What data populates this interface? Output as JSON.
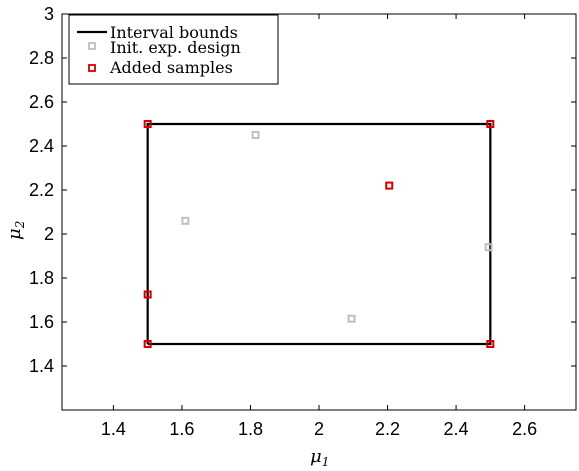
{
  "chart_data": {
    "type": "scatter",
    "xlabel": {
      "symbol": "μ",
      "subscript": "1"
    },
    "ylabel": {
      "symbol": "μ",
      "subscript": "2"
    },
    "xlim": [
      1.25,
      2.75
    ],
    "ylim": [
      1.2,
      3.0
    ],
    "xticks": [
      "1.4",
      "1.6",
      "1.8",
      "2",
      "2.2",
      "2.4",
      "2.6"
    ],
    "xtick_values": [
      1.4,
      1.6,
      1.8,
      2.0,
      2.2,
      2.4,
      2.6
    ],
    "yticks": [
      "1.4",
      "1.6",
      "1.8",
      "2",
      "2.2",
      "2.4",
      "2.6",
      "2.8",
      "3"
    ],
    "ytick_values": [
      1.4,
      1.6,
      1.8,
      2.0,
      2.2,
      2.4,
      2.6,
      2.8,
      3.0
    ],
    "grid": false,
    "legend_position": "top-left",
    "series": [
      {
        "name": "Interval bounds",
        "kind": "line",
        "color": "#000000",
        "x": [
          1.5,
          2.5,
          2.5,
          1.5,
          1.5
        ],
        "y": [
          1.5,
          1.5,
          2.5,
          2.5,
          1.5
        ]
      },
      {
        "name": "Init. exp. design",
        "kind": "marker",
        "color": "#bfbfbf",
        "x": [
          1.61,
          1.815,
          2.095,
          2.495
        ],
        "y": [
          2.06,
          2.45,
          1.615,
          1.94
        ]
      },
      {
        "name": "Added samples",
        "kind": "marker",
        "color": "#d40000",
        "x": [
          1.5,
          2.5,
          2.205,
          1.5,
          1.5,
          2.5
        ],
        "y": [
          2.5,
          2.5,
          2.22,
          1.725,
          1.5,
          1.5
        ]
      }
    ]
  }
}
